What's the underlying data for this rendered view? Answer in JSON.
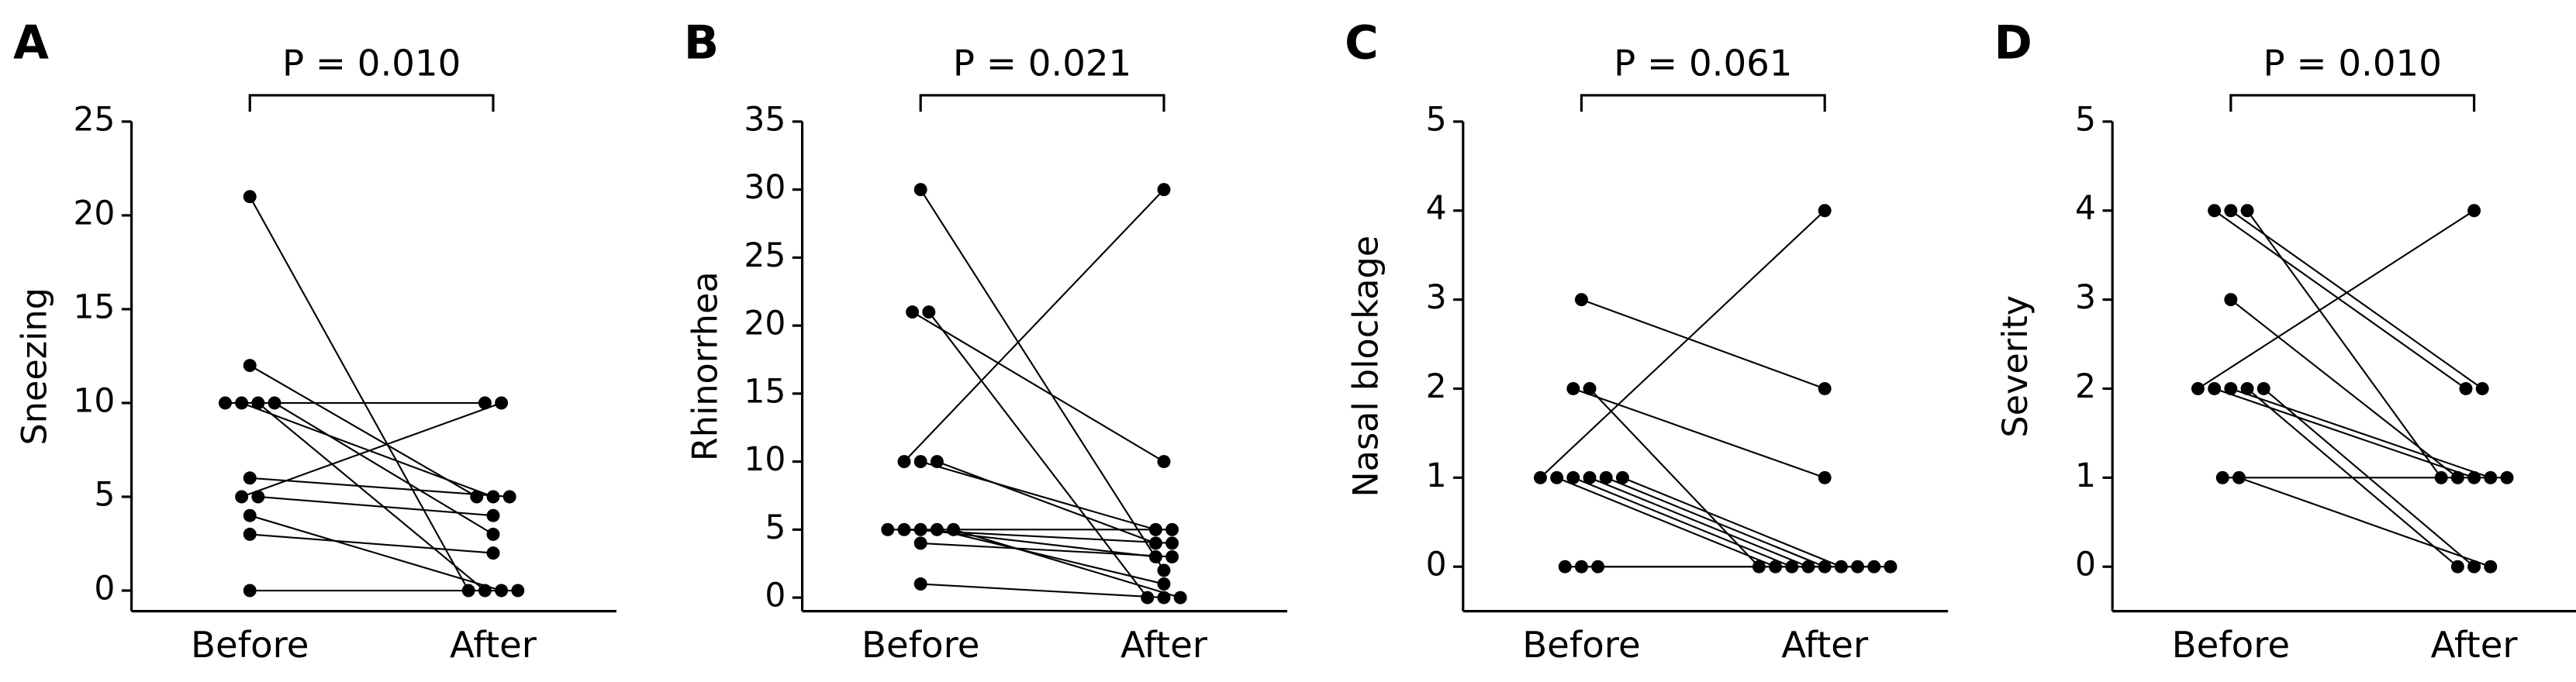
{
  "chart_data": [
    {
      "type": "paired",
      "panel": "A",
      "annotation": "P = 0.010",
      "ylabel": "Sneezing",
      "categories": [
        "Before",
        "After"
      ],
      "ylim": [
        -1.1,
        25
      ],
      "yticks": [
        0,
        5,
        10,
        15,
        20,
        25
      ],
      "pairs": [
        [
          21,
          0
        ],
        [
          12,
          5
        ],
        [
          10,
          10
        ],
        [
          10,
          5
        ],
        [
          10,
          0
        ],
        [
          10,
          3
        ],
        [
          6,
          5
        ],
        [
          5,
          10
        ],
        [
          5,
          4
        ],
        [
          4,
          0
        ],
        [
          3,
          2
        ],
        [
          0,
          0
        ]
      ]
    },
    {
      "type": "paired",
      "panel": "B",
      "annotation": "P = 0.021",
      "ylabel": "Rhinorrhea",
      "categories": [
        "Before",
        "After"
      ],
      "ylim": [
        -1,
        35
      ],
      "yticks": [
        0,
        5,
        10,
        15,
        20,
        25,
        30,
        35
      ],
      "pairs": [
        [
          30,
          2
        ],
        [
          21,
          10
        ],
        [
          21,
          0
        ],
        [
          10,
          30
        ],
        [
          10,
          5
        ],
        [
          10,
          4
        ],
        [
          5,
          5
        ],
        [
          5,
          4
        ],
        [
          5,
          3
        ],
        [
          5,
          1
        ],
        [
          4,
          3
        ],
        [
          1,
          0
        ],
        [
          5,
          0
        ]
      ]
    },
    {
      "type": "paired",
      "panel": "C",
      "annotation": "P = 0.061",
      "ylabel": "Nasal blockage",
      "categories": [
        "Before",
        "After"
      ],
      "ylim": [
        -0.5,
        5
      ],
      "yticks": [
        0,
        1,
        2,
        3,
        4,
        5
      ],
      "pairs": [
        [
          1,
          4
        ],
        [
          3,
          2
        ],
        [
          2,
          1
        ],
        [
          2,
          0
        ],
        [
          1,
          0
        ],
        [
          1,
          0
        ],
        [
          1,
          0
        ],
        [
          1,
          0
        ],
        [
          1,
          0
        ],
        [
          0,
          0
        ],
        [
          0,
          0
        ],
        [
          0,
          0
        ]
      ]
    },
    {
      "type": "paired",
      "panel": "D",
      "annotation": "P = 0.010",
      "ylabel": "Severity",
      "categories": [
        "Before",
        "After"
      ],
      "ylim": [
        -0.5,
        5
      ],
      "yticks": [
        0,
        1,
        2,
        3,
        4,
        5
      ],
      "pairs": [
        [
          2,
          4
        ],
        [
          4,
          2
        ],
        [
          4,
          2
        ],
        [
          4,
          1
        ],
        [
          3,
          1
        ],
        [
          2,
          1
        ],
        [
          2,
          1
        ],
        [
          2,
          0
        ],
        [
          2,
          0
        ],
        [
          1,
          1
        ],
        [
          1,
          0
        ]
      ]
    }
  ]
}
